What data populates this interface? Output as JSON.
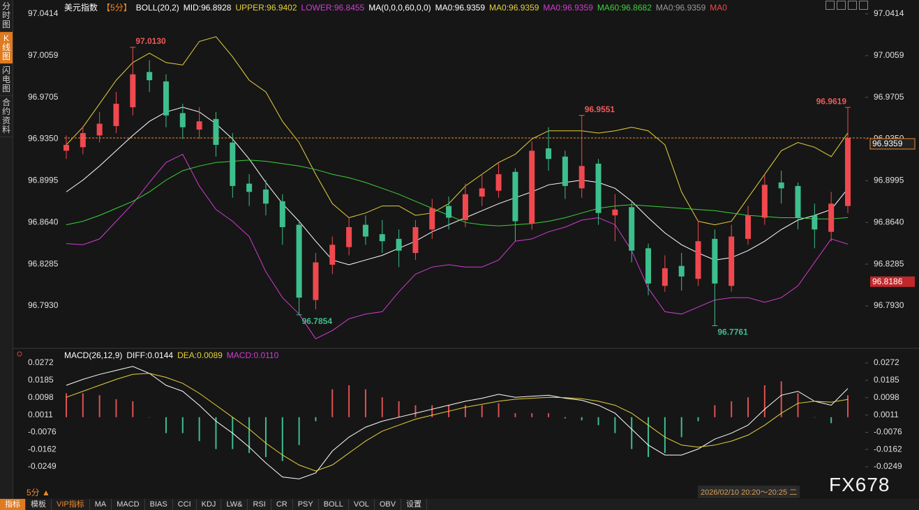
{
  "sidebar": [
    "分时图",
    "K线图",
    "闪电图",
    "合约资料"
  ],
  "toolbar": {
    "period": "5分",
    "arrow": "▲",
    "items": [
      "指标",
      "模板",
      "VIP指标",
      "MA",
      "MACD",
      "BIAS",
      "CCI",
      "KDJ",
      "LW&",
      "RSI",
      "CR",
      "PSY",
      "BOLL",
      "VOL",
      "OBV",
      "设置"
    ]
  },
  "time_label": "2026/02/10 20:20～20:25 二",
  "watermark": "FX678",
  "chart_data": [
    {
      "type": "candlestick",
      "title_items": [
        {
          "text": "美元指数",
          "color": "#ffffff"
        },
        {
          "text": "【5分】",
          "color": "#f08a2c"
        },
        {
          "text": "BOLL(20,2)",
          "color": "#ffffff"
        },
        {
          "text": "MID:96.8928",
          "color": "#ffffff"
        },
        {
          "text": "UPPER:96.9402",
          "color": "#e6d23c"
        },
        {
          "text": "LOWER:96.8455",
          "color": "#d23cd2"
        },
        {
          "text": "MA(0,0,0,60,0,0)",
          "color": "#ffffff"
        },
        {
          "text": "MA0:96.9359",
          "color": "#ffffff"
        },
        {
          "text": "MA0:96.9359",
          "color": "#e6d23c"
        },
        {
          "text": "MA0:96.9359",
          "color": "#d23cd2"
        },
        {
          "text": "MA60:96.8682",
          "color": "#3cd23c"
        },
        {
          "text": "MA0:96.9359",
          "color": "#9a9a9a"
        },
        {
          "text": "MA0",
          "color": "#f04848"
        }
      ],
      "open": [
        96.925,
        96.928,
        96.938,
        96.946,
        96.962,
        96.992,
        96.984,
        96.957,
        96.943,
        96.952,
        96.932,
        96.897,
        96.892,
        96.882,
        96.862,
        96.798,
        96.828,
        96.843,
        96.862,
        96.854,
        96.85,
        96.838,
        96.858,
        96.878,
        96.866,
        96.886,
        96.891,
        96.907,
        96.863,
        96.927,
        96.92,
        96.893,
        96.914,
        96.87,
        96.877,
        96.842,
        96.81,
        96.827,
        96.816,
        96.85,
        96.81,
        96.85,
        96.868,
        96.898,
        96.895,
        96.87,
        96.856,
        96.878
      ],
      "high": [
        96.938,
        96.946,
        96.958,
        96.975,
        97.013,
        97.002,
        96.99,
        96.965,
        96.962,
        96.958,
        96.94,
        96.905,
        96.9,
        96.888,
        96.866,
        96.838,
        96.852,
        96.868,
        96.87,
        96.866,
        96.858,
        96.866,
        96.884,
        96.886,
        96.897,
        96.905,
        96.915,
        96.91,
        96.933,
        96.945,
        96.925,
        96.9551,
        96.918,
        96.888,
        96.882,
        96.846,
        96.836,
        96.838,
        96.866,
        96.858,
        96.862,
        96.878,
        96.905,
        96.908,
        96.898,
        96.88,
        96.89,
        96.9619
      ],
      "low": [
        96.918,
        96.922,
        96.932,
        96.94,
        96.955,
        96.975,
        96.945,
        96.935,
        96.935,
        96.92,
        96.885,
        96.878,
        96.87,
        96.845,
        96.7854,
        96.79,
        96.82,
        96.836,
        96.845,
        96.838,
        96.826,
        96.832,
        96.85,
        96.858,
        96.86,
        96.878,
        96.885,
        96.848,
        96.858,
        96.908,
        96.884,
        96.885,
        96.862,
        96.848,
        96.83,
        96.802,
        96.805,
        96.806,
        96.81,
        96.7761,
        96.805,
        96.845,
        96.862,
        96.88,
        96.858,
        96.842,
        96.848,
        96.872
      ],
      "close": [
        96.93,
        96.94,
        96.948,
        96.965,
        96.99,
        96.985,
        96.955,
        96.945,
        96.95,
        96.93,
        96.895,
        96.89,
        96.88,
        96.86,
        96.8,
        96.83,
        96.845,
        96.86,
        96.852,
        96.848,
        96.84,
        96.86,
        96.876,
        96.868,
        96.888,
        96.893,
        96.905,
        96.865,
        96.925,
        96.918,
        96.895,
        96.912,
        96.872,
        96.875,
        96.84,
        96.812,
        96.825,
        96.818,
        96.848,
        96.812,
        96.852,
        96.87,
        96.896,
        96.893,
        96.868,
        96.858,
        96.88,
        96.9359
      ],
      "up_color": "#f0484f",
      "down_color": "#3dbf8d",
      "series": [
        {
          "color": "#e6d23c",
          "values": [
            96.93,
            96.945,
            96.965,
            96.985,
            97.0,
            97.008,
            97.0,
            96.998,
            97.018,
            97.022,
            97.005,
            96.985,
            96.975,
            96.95,
            96.932,
            96.905,
            96.88,
            96.868,
            96.872,
            96.878,
            96.878,
            96.87,
            96.872,
            96.88,
            96.895,
            96.905,
            96.915,
            96.922,
            96.935,
            96.942,
            96.942,
            96.942,
            96.94,
            96.942,
            96.945,
            96.942,
            96.93,
            96.89,
            96.865,
            96.862,
            96.865,
            96.885,
            96.905,
            96.925,
            96.932,
            96.928,
            96.92,
            96.9402
          ]
        },
        {
          "color": "#ffffff",
          "values": [
            96.89,
            96.9,
            96.912,
            96.925,
            96.938,
            96.95,
            96.958,
            96.962,
            96.958,
            96.948,
            96.935,
            96.918,
            96.898,
            96.88,
            96.865,
            96.848,
            96.832,
            96.828,
            96.832,
            96.836,
            96.842,
            96.848,
            96.856,
            96.862,
            96.868,
            96.874,
            96.88,
            96.885,
            96.89,
            96.896,
            96.898,
            96.9,
            96.898,
            96.893,
            96.882,
            96.868,
            96.855,
            96.845,
            96.838,
            96.832,
            96.834,
            96.84,
            96.848,
            96.858,
            96.866,
            96.87,
            96.875,
            96.8928
          ]
        },
        {
          "color": "#d23cd2",
          "values": [
            96.846,
            96.845,
            96.85,
            96.865,
            96.88,
            96.898,
            96.915,
            96.922,
            96.895,
            96.875,
            96.865,
            96.852,
            96.822,
            96.8,
            96.786,
            96.765,
            96.772,
            96.782,
            96.786,
            96.788,
            96.805,
            96.82,
            96.826,
            96.828,
            96.826,
            96.826,
            96.832,
            96.848,
            96.85,
            96.856,
            96.86,
            96.866,
            96.868,
            96.862,
            96.84,
            96.808,
            96.788,
            96.786,
            96.792,
            96.798,
            96.8,
            96.8,
            96.796,
            96.8,
            96.81,
            96.83,
            96.85,
            96.8455
          ]
        },
        {
          "color": "#3cd23c",
          "values": [
            96.862,
            96.865,
            96.87,
            96.876,
            96.882,
            96.89,
            96.9,
            96.908,
            96.912,
            96.915,
            96.916,
            96.917,
            96.916,
            96.914,
            96.912,
            96.909,
            96.905,
            96.902,
            96.898,
            96.893,
            96.888,
            96.882,
            96.876,
            96.87,
            96.864,
            96.862,
            96.861,
            96.862,
            96.863,
            96.865,
            96.868,
            96.872,
            96.876,
            96.878,
            96.879,
            96.878,
            96.877,
            96.876,
            96.875,
            96.874,
            96.872,
            96.87,
            96.869,
            96.868,
            96.868,
            96.867,
            96.867,
            96.8682
          ]
        }
      ],
      "ylim": [
        96.7598,
        97.0503
      ],
      "yticks": [
        97.0414,
        97.0059,
        96.9705,
        {
          "value": 96.935,
          "label": "96.9350"
        },
        96.8995,
        {
          "value": 96.864,
          "label": "96.8640"
        },
        96.8285,
        {
          "value": 96.793,
          "label": "96.7930"
        }
      ],
      "annotations": [
        {
          "value": 97.013,
          "label": "97.0130",
          "color": "#f05a5a"
        },
        {
          "value": 96.9551,
          "label": "96.9551",
          "color": "#f05a5a"
        },
        {
          "value": 96.9619,
          "label": "96.9619",
          "color": "#f05a5a"
        },
        {
          "value": 96.7854,
          "label": "96.7854",
          "color": "#3dbf8d"
        },
        {
          "value": 96.7761,
          "label": "96.7761",
          "color": "#3dbf8d"
        }
      ],
      "price_line": {
        "value": 96.9359,
        "label": "96.9359",
        "color": "#f08a2c"
      },
      "tags": [
        {
          "value": 96.8186,
          "label": "96.8186",
          "color": "#c0282c"
        }
      ]
    },
    {
      "type": "macd",
      "title_items": [
        {
          "text": "MACD(26,12,9)",
          "color": "#ffffff"
        },
        {
          "text": "DIFF:0.0144",
          "color": "#ffffff"
        },
        {
          "text": "DEA:0.0089",
          "color": "#e6d23c"
        },
        {
          "text": "MACD:0.0110",
          "color": "#d23cd2"
        }
      ],
      "diff": {
        "color": "#ffffff",
        "values": [
          0.016,
          0.019,
          0.0215,
          0.0235,
          0.0255,
          0.022,
          0.016,
          0.013,
          0.006,
          -0.002,
          -0.008,
          -0.015,
          -0.023,
          -0.03,
          -0.031,
          -0.028,
          -0.017,
          -0.01,
          -0.005,
          -0.002,
          0.0,
          0.002,
          0.004,
          0.006,
          0.008,
          0.0095,
          0.0115,
          0.01,
          0.0105,
          0.011,
          0.0095,
          0.0085,
          0.006,
          0.002,
          -0.006,
          -0.014,
          -0.019,
          -0.019,
          -0.016,
          -0.011,
          -0.008,
          -0.004,
          0.004,
          0.011,
          0.013,
          0.008,
          0.006,
          0.0144
        ]
      },
      "dea": {
        "color": "#e6d23c",
        "values": [
          0.01,
          0.013,
          0.016,
          0.019,
          0.0215,
          0.022,
          0.02,
          0.017,
          0.012,
          0.006,
          0.0,
          -0.006,
          -0.013,
          -0.019,
          -0.024,
          -0.027,
          -0.024,
          -0.018,
          -0.012,
          -0.007,
          -0.004,
          -0.001,
          0.001,
          0.003,
          0.005,
          0.0065,
          0.008,
          0.009,
          0.0095,
          0.01,
          0.0098,
          0.0093,
          0.008,
          0.006,
          0.002,
          -0.004,
          -0.01,
          -0.014,
          -0.015,
          -0.014,
          -0.012,
          -0.009,
          -0.004,
          0.002,
          0.007,
          0.008,
          0.0075,
          0.0089
        ]
      },
      "histogram": {
        "up_color": "#e05050",
        "down_color": "#3dbf8d",
        "values": [
          0.012,
          0.012,
          0.011,
          0.009,
          0.008,
          0.0,
          -0.008,
          -0.008,
          -0.012,
          -0.016,
          -0.016,
          -0.018,
          -0.02,
          -0.022,
          -0.014,
          -0.002,
          0.014,
          0.016,
          0.014,
          0.01,
          0.008,
          0.006,
          0.006,
          0.006,
          0.006,
          0.006,
          0.007,
          0.002,
          0.002,
          0.002,
          -0.0006,
          -0.0016,
          -0.004,
          -0.008,
          -0.016,
          -0.02,
          -0.018,
          -0.01,
          -0.002,
          0.006,
          0.008,
          0.01,
          0.016,
          0.018,
          0.012,
          0.0,
          -0.003,
          0.011
        ]
      },
      "ylim": [
        -0.0354,
        0.0328
      ],
      "yticks": [
        0.0272,
        0.0185,
        0.0098,
        0.0011,
        -0.0076,
        -0.0162,
        -0.0249
      ]
    }
  ]
}
